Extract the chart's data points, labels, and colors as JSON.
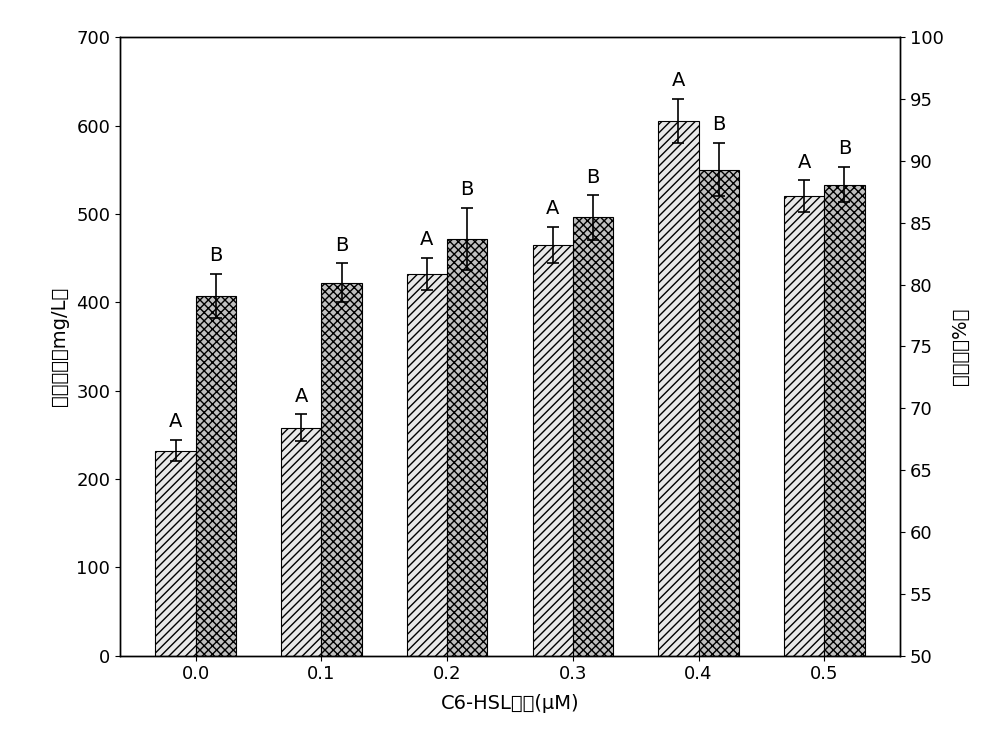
{
  "categories": [
    "0.0",
    "0.1",
    "0.2",
    "0.3",
    "0.4",
    "0.5"
  ],
  "bar1_values": [
    232,
    258,
    432,
    465,
    605,
    520
  ],
  "bar2_values": [
    407,
    422,
    472,
    496,
    550,
    533
  ],
  "bar1_errors": [
    12,
    15,
    18,
    20,
    25,
    18
  ],
  "bar2_errors": [
    25,
    22,
    35,
    25,
    30,
    20
  ],
  "bar1_labels": [
    "A",
    "A",
    "A",
    "A",
    "A",
    "A"
  ],
  "bar2_labels": [
    "B",
    "B",
    "B",
    "B",
    "B",
    "B"
  ],
  "xlabel": "C6-HSL浓度(μM)",
  "ylabel_left": "多糖浓度（mg/L）",
  "ylabel_right": "絮凝率（%）",
  "ylim_left": [
    0,
    700
  ],
  "ylim_right": [
    50,
    100
  ],
  "yticks_left": [
    0,
    100,
    200,
    300,
    400,
    500,
    600,
    700
  ],
  "yticks_right": [
    50,
    55,
    60,
    65,
    70,
    75,
    80,
    85,
    90,
    95,
    100
  ],
  "bar_width": 0.32,
  "background_color": "#ffffff",
  "bar1_hatch": "////",
  "bar2_hatch": "xxxx",
  "bar_edgecolor": "#000000",
  "bar1_facecolor": "#e8e8e8",
  "bar2_facecolor": "#c0c0c0",
  "label_fontsize": 14,
  "tick_fontsize": 13,
  "annotation_fontsize": 14
}
